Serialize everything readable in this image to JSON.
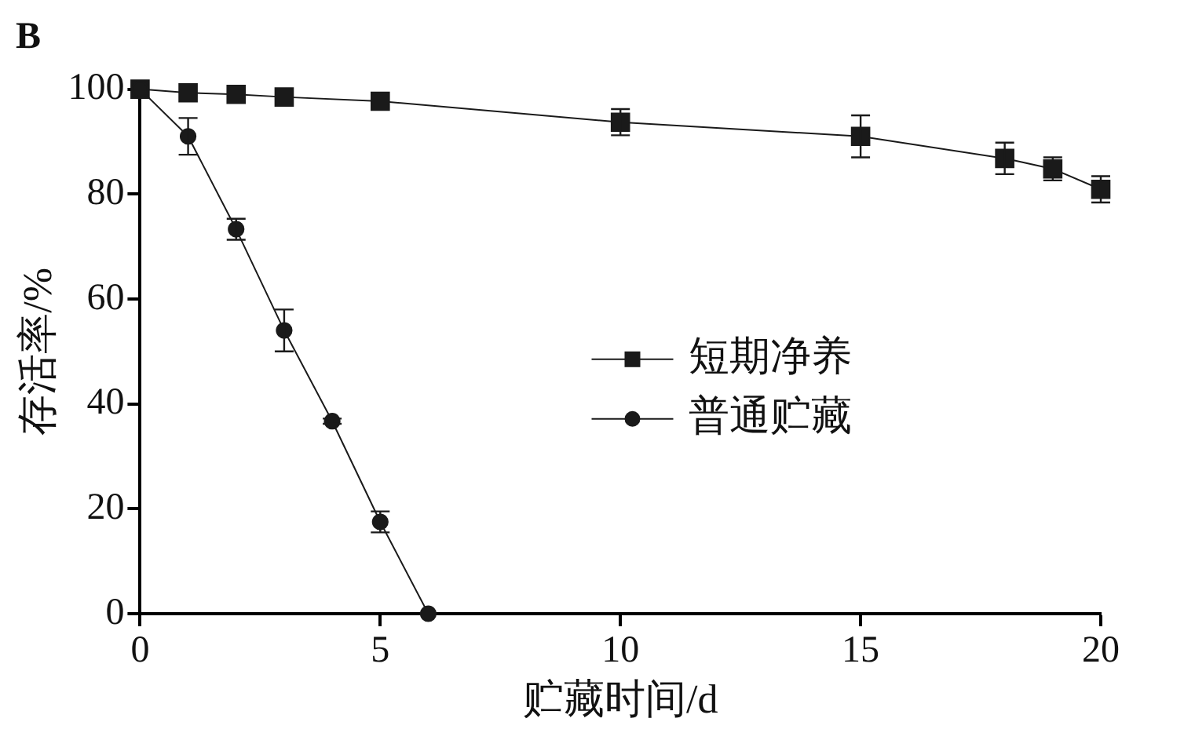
{
  "chart_data": {
    "type": "line",
    "title": "B",
    "xlabel": "贮藏时间/d",
    "ylabel": "存活率/%",
    "xlim": [
      0,
      20
    ],
    "xticks": [
      0,
      5,
      10,
      15,
      20
    ],
    "ylim": [
      0,
      100
    ],
    "yticks": [
      0,
      20,
      40,
      60,
      80,
      100
    ],
    "grid": false,
    "legend": "right",
    "line_style": "solid",
    "series": [
      {
        "name": "短期净养",
        "color": "#1a1a1a",
        "marker": "square",
        "x": [
          0,
          1,
          2,
          3,
          5,
          10,
          15,
          18,
          19,
          20
        ],
        "values": [
          100,
          99.3,
          99,
          98.5,
          97.7,
          93.7,
          91,
          86.8,
          84.8,
          80.9
        ],
        "errors": [
          null,
          null,
          null,
          null,
          null,
          2.5,
          4,
          3,
          2.2,
          2.5
        ]
      },
      {
        "name": "普通贮藏",
        "color": "#1a1a1a",
        "marker": "circle",
        "x": [
          0,
          1,
          2,
          3,
          4,
          5,
          6
        ],
        "values": [
          100,
          91,
          73.3,
          54,
          36.7,
          17.5,
          0
        ],
        "errors": [
          null,
          3.5,
          2,
          4,
          0.5,
          2,
          null
        ]
      }
    ]
  }
}
